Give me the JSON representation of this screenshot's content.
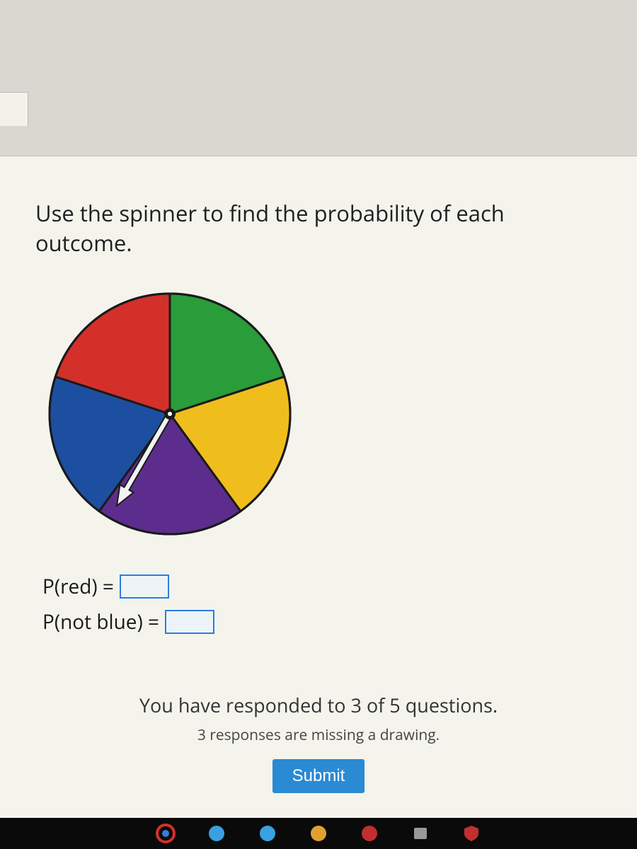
{
  "question": {
    "text": "Use the spinner to find the probability of each outcome."
  },
  "spinner": {
    "type": "pie",
    "radius": 170,
    "stroke_color": "#1a1a1a",
    "stroke_width": 3,
    "background_color": "#f4f4ed",
    "slices": [
      {
        "color": "#2a9c3a",
        "angle_deg": 72
      },
      {
        "color": "#f0be1c",
        "angle_deg": 72
      },
      {
        "color": "#5d2d8e",
        "angle_deg": 72
      },
      {
        "color": "#1d4fa0",
        "angle_deg": 72
      },
      {
        "color": "#d4302a",
        "angle_deg": 72
      }
    ],
    "start_angle_deg": -90,
    "arrow": {
      "angle_deg": 120,
      "length": 150,
      "head_width": 22,
      "head_length": 28,
      "shaft_width": 8,
      "fill": "#f2f2f2",
      "stroke": "#1a1a1a"
    },
    "hub": {
      "radius": 8,
      "fill": "#1a1a1a",
      "inner_fill": "#ffffff",
      "inner_radius": 3
    }
  },
  "answers": {
    "row1_label": "P(red) =",
    "row1_value": "",
    "row2_label": "P(not blue) =",
    "row2_value": "",
    "input_border_color": "#2a7de1",
    "input_bg_color": "#eef3f8"
  },
  "progress": {
    "main": "You have responded to 3 of 5 questions.",
    "sub": "3 responses are missing a drawing.",
    "submit_label": "Submit",
    "submit_bg": "#2a8ad4"
  },
  "taskbar": {
    "items": [
      {
        "name": "chrome-icon",
        "color": "#ffffff"
      },
      {
        "name": "edge-icon",
        "color": "#3aa0e0"
      },
      {
        "name": "folder-icon",
        "color": "#3aa0e0"
      },
      {
        "name": "app-icon",
        "color": "#e0a030"
      },
      {
        "name": "store-icon",
        "color": "#c03030"
      },
      {
        "name": "files-icon",
        "color": "#888888"
      },
      {
        "name": "security-icon",
        "color": "#c03030"
      }
    ]
  },
  "colors": {
    "page_bg": "#d8d8d0",
    "card_bg": "#f4f4ed",
    "text": "#1a1a1a"
  }
}
